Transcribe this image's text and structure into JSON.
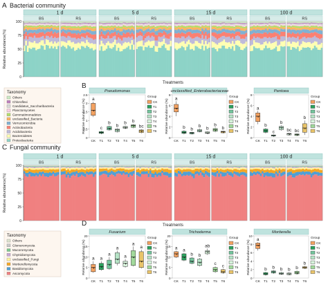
{
  "panels": {
    "A": {
      "letter": "A",
      "title": "Bacterial community"
    },
    "B": {
      "letter": "B"
    },
    "C": {
      "letter": "C",
      "title": "Fungal community"
    },
    "D": {
      "letter": "D"
    }
  },
  "stack_common": {
    "periods": [
      "1 d",
      "5 d",
      "15 d",
      "100 d"
    ],
    "soils": [
      "BS",
      "RS"
    ],
    "ticks": [
      "CK",
      "T1",
      "T2",
      "T3",
      "T4",
      "T5",
      "T6"
    ],
    "xlabel": "Treatments",
    "ylabel": "Relative abundance(%)",
    "yticks": [
      "0",
      "25",
      "50",
      "75",
      "100"
    ]
  },
  "box_common": {
    "ticks": [
      "CK",
      "T1",
      "T2",
      "T3",
      "T4",
      "T5",
      "T6"
    ],
    "ylabel": "Relative abundance (%)",
    "legend_title": "Group",
    "groups": [
      "CK",
      "T1",
      "T2",
      "T3",
      "T4",
      "T5",
      "T6"
    ],
    "group_colors": [
      "#f4a261",
      "#2ca25f",
      "#74c69d",
      "#b7e4c7",
      "#d8f3dc",
      "#a1d99b",
      "#e9c46a"
    ]
  },
  "chart_data": [
    {
      "type": "area",
      "title": "Bacterial community",
      "taxonomy_title": "Taxonomy",
      "taxa": [
        {
          "name": "Proteobacteria",
          "color": "#8dd3c7"
        },
        {
          "name": "Bacteroidetes",
          "color": "#ffffb3"
        },
        {
          "name": "Acidobacteria",
          "color": "#bebada"
        },
        {
          "name": "Actinobacteria",
          "color": "#fb8072"
        },
        {
          "name": "Verrucomicrobia",
          "color": "#80b1d3"
        },
        {
          "name": "unclassified_Bacteria",
          "color": "#fdb462"
        },
        {
          "name": "Gemmatimonadetes",
          "color": "#b3de69"
        },
        {
          "name": "Planctomycetes",
          "color": "#fccde5"
        },
        {
          "name": "Candidatus_Saccharibacteria",
          "color": "#d9d9d9"
        },
        {
          "name": "Chloroflexi",
          "color": "#bc80bd"
        },
        {
          "name": "Others",
          "color": "#ccebc5"
        }
      ],
      "base_profile": [
        52,
        10,
        9,
        8,
        6,
        4,
        3,
        2,
        2,
        1.5,
        2.5
      ],
      "ylim": [
        0,
        100
      ]
    },
    {
      "type": "area",
      "title": "Fungal community",
      "taxonomy_title": "Taxonomy",
      "taxa": [
        {
          "name": "Ascomycota",
          "color": "#f08080"
        },
        {
          "name": "Basidiomycota",
          "color": "#4f9fd5"
        },
        {
          "name": "Mortierellomycota",
          "color": "#f5a623"
        },
        {
          "name": "unclassified_Fungi",
          "color": "#fff3a0"
        },
        {
          "name": "Chytridiomycota",
          "color": "#c9a7d6"
        },
        {
          "name": "Mucoromycota",
          "color": "#7dc98f"
        },
        {
          "name": "Glomeromycota",
          "color": "#c8c8c8"
        },
        {
          "name": "Others",
          "color": "#dde4cf"
        }
      ],
      "base_profile": [
        82,
        6,
        5,
        3,
        1.5,
        1,
        0.5,
        1
      ],
      "ylim": [
        0,
        100
      ]
    },
    {
      "type": "box",
      "title": "Pseudomonas",
      "ylim": [
        0,
        2.5
      ],
      "yticks": [
        0,
        0.5,
        1.0,
        1.5,
        2.0,
        2.5
      ],
      "boxes": [
        {
          "q1": 1.3,
          "med": 1.6,
          "q3": 2.0,
          "min": 1.2,
          "max": 2.1,
          "letter": "a"
        },
        {
          "q1": 0.25,
          "med": 0.3,
          "q3": 0.35,
          "min": 0.2,
          "max": 0.4,
          "letter": "c"
        },
        {
          "q1": 0.45,
          "med": 0.55,
          "q3": 0.65,
          "min": 0.4,
          "max": 0.7,
          "letter": "b"
        },
        {
          "q1": 0.35,
          "med": 0.45,
          "q3": 0.5,
          "min": 0.3,
          "max": 0.55,
          "letter": "b"
        },
        {
          "q1": 0.55,
          "med": 0.6,
          "q3": 0.65,
          "min": 0.5,
          "max": 0.7,
          "letter": "b"
        },
        {
          "q1": 0.6,
          "med": 0.7,
          "q3": 0.75,
          "min": 0.55,
          "max": 0.8,
          "letter": "b"
        },
        {
          "q1": 0.3,
          "med": 0.4,
          "q3": 0.45,
          "min": 0.25,
          "max": 0.5,
          "letter": "bc"
        }
      ]
    },
    {
      "type": "box",
      "title": "unclassified_Enterobacteriaceae",
      "ylim": [
        0,
        8
      ],
      "yticks": [
        0,
        2,
        4,
        6,
        8
      ],
      "boxes": [
        {
          "q1": 4.8,
          "med": 5.5,
          "q3": 6.2,
          "min": 4.0,
          "max": 6.8,
          "letter": "a"
        },
        {
          "q1": 0.8,
          "med": 1.0,
          "q3": 1.2,
          "min": 0.6,
          "max": 1.4,
          "letter": "b"
        },
        {
          "q1": 0.7,
          "med": 0.9,
          "q3": 1.0,
          "min": 0.6,
          "max": 1.1,
          "letter": "b"
        },
        {
          "q1": 1.1,
          "med": 1.3,
          "q3": 1.5,
          "min": 1.0,
          "max": 1.7,
          "letter": "b"
        },
        {
          "q1": 0.8,
          "med": 0.9,
          "q3": 1.1,
          "min": 0.7,
          "max": 1.2,
          "letter": "b"
        },
        {
          "q1": 1.2,
          "med": 1.5,
          "q3": 1.7,
          "min": 1.0,
          "max": 1.9,
          "letter": "b"
        },
        {
          "q1": 0.9,
          "med": 1.1,
          "q3": 1.2,
          "min": 0.8,
          "max": 1.3,
          "letter": "b"
        }
      ]
    },
    {
      "type": "box",
      "title": "Pantoea",
      "ylim": [
        0,
        8
      ],
      "yticks": [
        0,
        2,
        4,
        6,
        8
      ],
      "boxes": [
        {
          "q1": 3.0,
          "med": 4.0,
          "q3": 4.6,
          "min": 2.5,
          "max": 5.0,
          "letter": "a"
        },
        {
          "q1": 1.0,
          "med": 1.3,
          "q3": 1.6,
          "min": 0.8,
          "max": 1.8,
          "letter": "b"
        },
        {
          "q1": 0.3,
          "med": 0.4,
          "q3": 0.5,
          "min": 0.2,
          "max": 0.6,
          "letter": "c"
        },
        {
          "q1": 1.5,
          "med": 1.9,
          "q3": 2.1,
          "min": 1.3,
          "max": 2.3,
          "letter": "b"
        },
        {
          "q1": 0.5,
          "med": 0.7,
          "q3": 0.8,
          "min": 0.4,
          "max": 0.9,
          "letter": "bc"
        },
        {
          "q1": 0.4,
          "med": 0.6,
          "q3": 0.7,
          "min": 0.3,
          "max": 0.8,
          "letter": "bc"
        },
        {
          "q1": 1.0,
          "med": 1.8,
          "q3": 2.6,
          "min": 0.5,
          "max": 3.2,
          "letter": "b"
        }
      ]
    },
    {
      "type": "box",
      "title": "Fusarium",
      "ylim": [
        0,
        20
      ],
      "yticks": [
        0,
        5,
        10,
        15,
        20
      ],
      "boxes": [
        {
          "q1": 3.0,
          "med": 5.0,
          "q3": 6.5,
          "min": 2.5,
          "max": 8.0,
          "letter": "a"
        },
        {
          "q1": 4.0,
          "med": 5.5,
          "q3": 7.0,
          "min": 3.5,
          "max": 8.0,
          "letter": "a"
        },
        {
          "q1": 4.5,
          "med": 6.5,
          "q3": 8.5,
          "min": 4.0,
          "max": 10.0,
          "letter": "a"
        },
        {
          "q1": 7.0,
          "med": 9.0,
          "q3": 12.0,
          "min": 6.0,
          "max": 13.0,
          "letter": "a"
        },
        {
          "q1": 5.5,
          "med": 7.0,
          "q3": 8.0,
          "min": 5.0,
          "max": 9.0,
          "letter": "a"
        },
        {
          "q1": 6.0,
          "med": 10.0,
          "q3": 13.0,
          "min": 5.5,
          "max": 15.0,
          "letter": "a"
        },
        {
          "q1": 5.0,
          "med": 8.0,
          "q3": 12.5,
          "min": 4.5,
          "max": 13.5,
          "letter": "a"
        }
      ]
    },
    {
      "type": "box",
      "title": "Trichoderma",
      "ylim": [
        0,
        20
      ],
      "yticks": [
        0,
        5,
        10,
        15,
        20
      ],
      "boxes": [
        {
          "q1": 10.0,
          "med": 11.5,
          "q3": 12.5,
          "min": 9.5,
          "max": 13.0,
          "letter": "a"
        },
        {
          "q1": 8.5,
          "med": 10.0,
          "q3": 11.5,
          "min": 8.0,
          "max": 12.0,
          "letter": "a"
        },
        {
          "q1": 7.0,
          "med": 8.0,
          "q3": 9.5,
          "min": 6.5,
          "max": 10.0,
          "letter": "b"
        },
        {
          "q1": 6.0,
          "med": 7.5,
          "q3": 9.0,
          "min": 5.5,
          "max": 9.5,
          "letter": "b"
        },
        {
          "q1": 11.5,
          "med": 12.5,
          "q3": 13.0,
          "min": 11.0,
          "max": 14.0,
          "letter": "ab"
        },
        {
          "q1": 3.0,
          "med": 4.0,
          "q3": 5.0,
          "min": 2.5,
          "max": 5.5,
          "letter": "c"
        },
        {
          "q1": 2.5,
          "med": 3.0,
          "q3": 4.0,
          "min": 2.0,
          "max": 4.5,
          "letter": "c"
        }
      ]
    },
    {
      "type": "box",
      "title": "Mortierella",
      "ylim": [
        0,
        10
      ],
      "yticks": [
        0,
        2,
        4,
        6,
        8,
        10
      ],
      "boxes": [
        {
          "q1": 7.0,
          "med": 7.8,
          "q3": 8.3,
          "min": 6.5,
          "max": 8.5,
          "letter": "a"
        },
        {
          "q1": 0.8,
          "med": 1.0,
          "q3": 1.3,
          "min": 0.6,
          "max": 1.5,
          "letter": "b"
        },
        {
          "q1": 1.2,
          "med": 1.5,
          "q3": 1.7,
          "min": 1.0,
          "max": 1.9,
          "letter": "b"
        },
        {
          "q1": 0.9,
          "med": 1.1,
          "q3": 1.3,
          "min": 0.8,
          "max": 1.5,
          "letter": "b"
        },
        {
          "q1": 0.8,
          "med": 1.0,
          "q3": 1.2,
          "min": 0.7,
          "max": 1.4,
          "letter": "b"
        },
        {
          "q1": 1.0,
          "med": 1.3,
          "q3": 1.6,
          "min": 0.8,
          "max": 1.8,
          "letter": "b"
        },
        {
          "q1": 2.3,
          "med": 2.5,
          "q3": 2.7,
          "min": 2.2,
          "max": 2.9,
          "letter": "b"
        }
      ]
    }
  ]
}
